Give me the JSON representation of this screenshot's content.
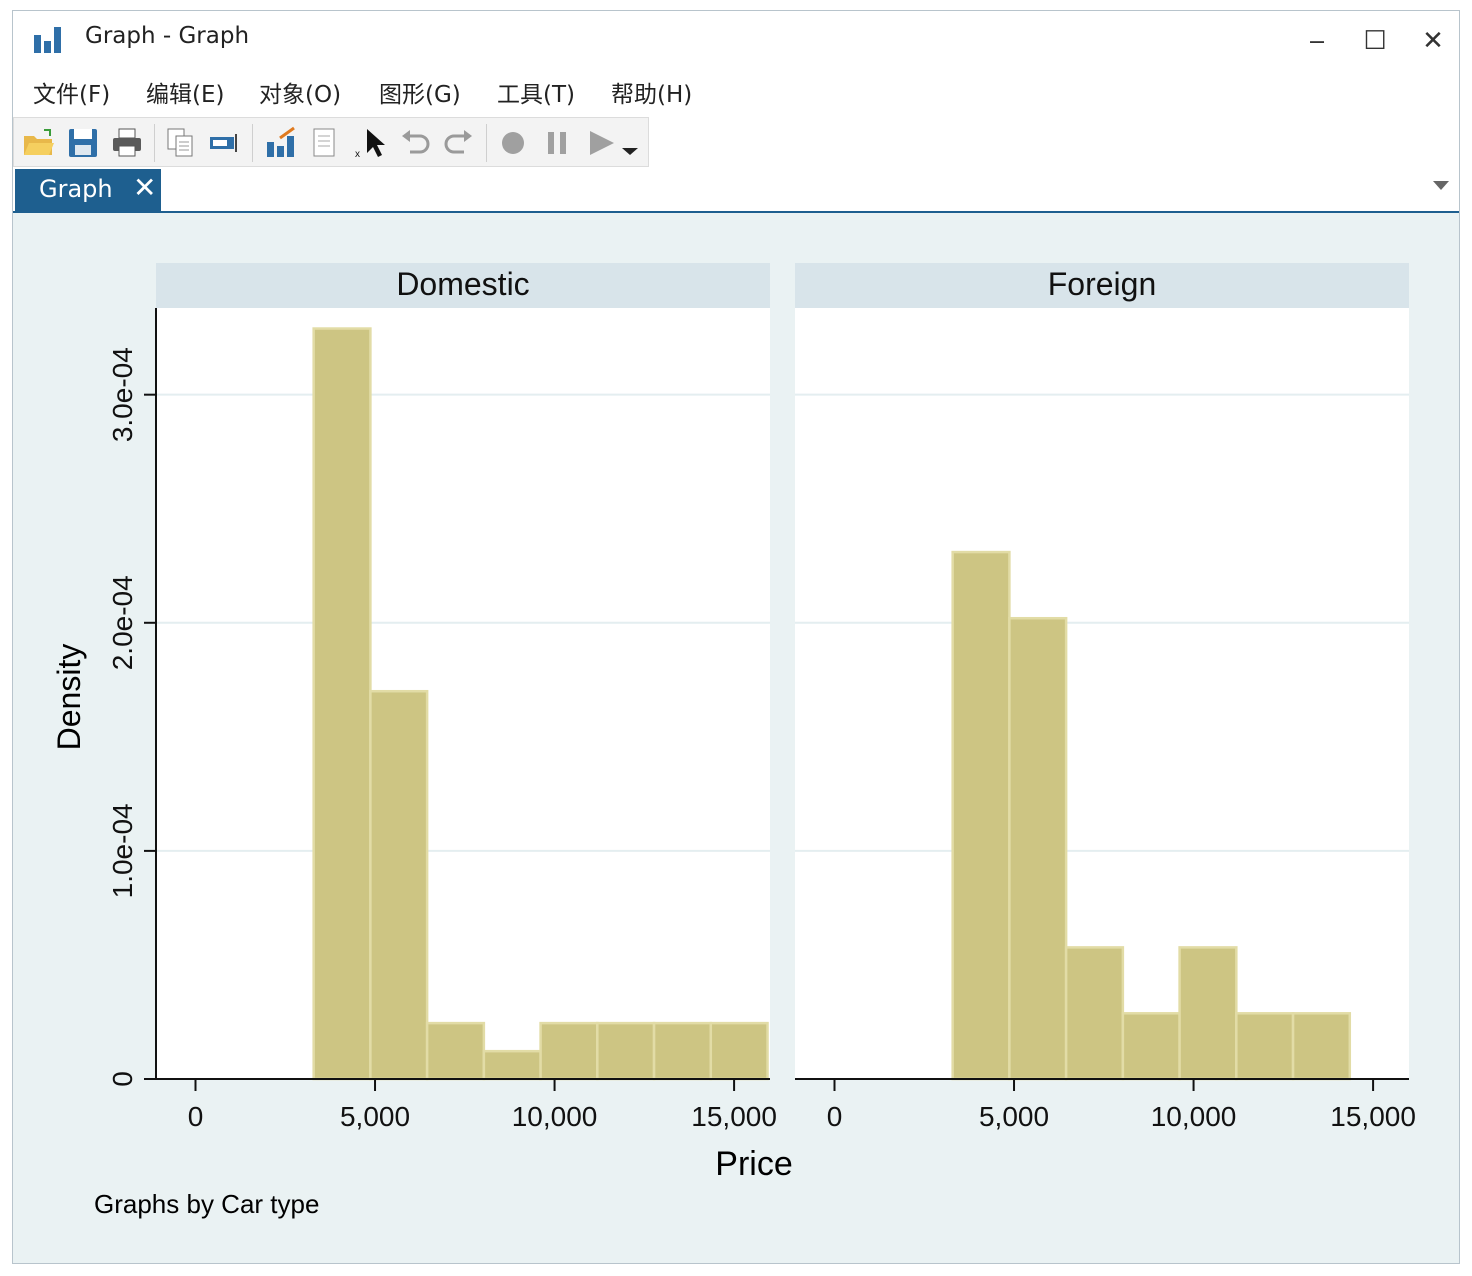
{
  "window": {
    "title": "Graph - Graph",
    "controls": {
      "minimize": "‒",
      "maximize": "☐",
      "close": "✕"
    }
  },
  "menu": [
    "文件(F)",
    "编辑(E)",
    "对象(O)",
    "图形(G)",
    "工具(T)",
    "帮助(H)"
  ],
  "toolbar": {
    "icons": [
      "open-folder-icon",
      "save-icon",
      "print-icon",
      "copy-icon",
      "rename-icon",
      "graph-editor-icon",
      "properties-icon",
      "pointer-icon",
      "undo-icon",
      "redo-icon",
      "record-icon",
      "pause-icon",
      "play-icon",
      "dropdown-icon"
    ]
  },
  "tabs": [
    {
      "label": "Graph",
      "close": "✕"
    }
  ],
  "colors": {
    "bar_fill": "#cdc583",
    "bar_edge": "#e2dca6",
    "panel_header": "#d8e4ea",
    "plot_bg": "#ffffff",
    "grid": "#e4eef0",
    "graph_bg": "#eaf2f3",
    "tab_active": "#1e5f8f"
  },
  "chart_data": {
    "type": "bar",
    "subtype": "histogram",
    "ylabel": "Density",
    "xlabel": "Price",
    "note": "Graphs by Car type",
    "ylim": [
      0,
      0.000338
    ],
    "xlim": [
      -1100,
      16000
    ],
    "yticks": [
      0,
      0.0001,
      0.0002,
      0.0003
    ],
    "ytick_labels": [
      "0",
      "1.0e-04",
      "2.0e-04",
      "3.0e-04"
    ],
    "xticks": [
      0,
      5000,
      10000,
      15000
    ],
    "xtick_labels": [
      "0",
      "5,000",
      "10,000",
      "15,000"
    ],
    "grid": true,
    "bin_start": 3291,
    "bin_width": 1580,
    "series": [
      {
        "name": "Domestic",
        "values": [
          0.000329,
          0.00017,
          2.45e-05,
          1.22e-05,
          2.45e-05,
          2.45e-05,
          2.45e-05,
          2.45e-05
        ]
      },
      {
        "name": "Foreign",
        "values": [
          0.000231,
          0.000202,
          5.77e-05,
          2.88e-05,
          5.77e-05,
          2.88e-05,
          2.88e-05
        ]
      }
    ]
  }
}
